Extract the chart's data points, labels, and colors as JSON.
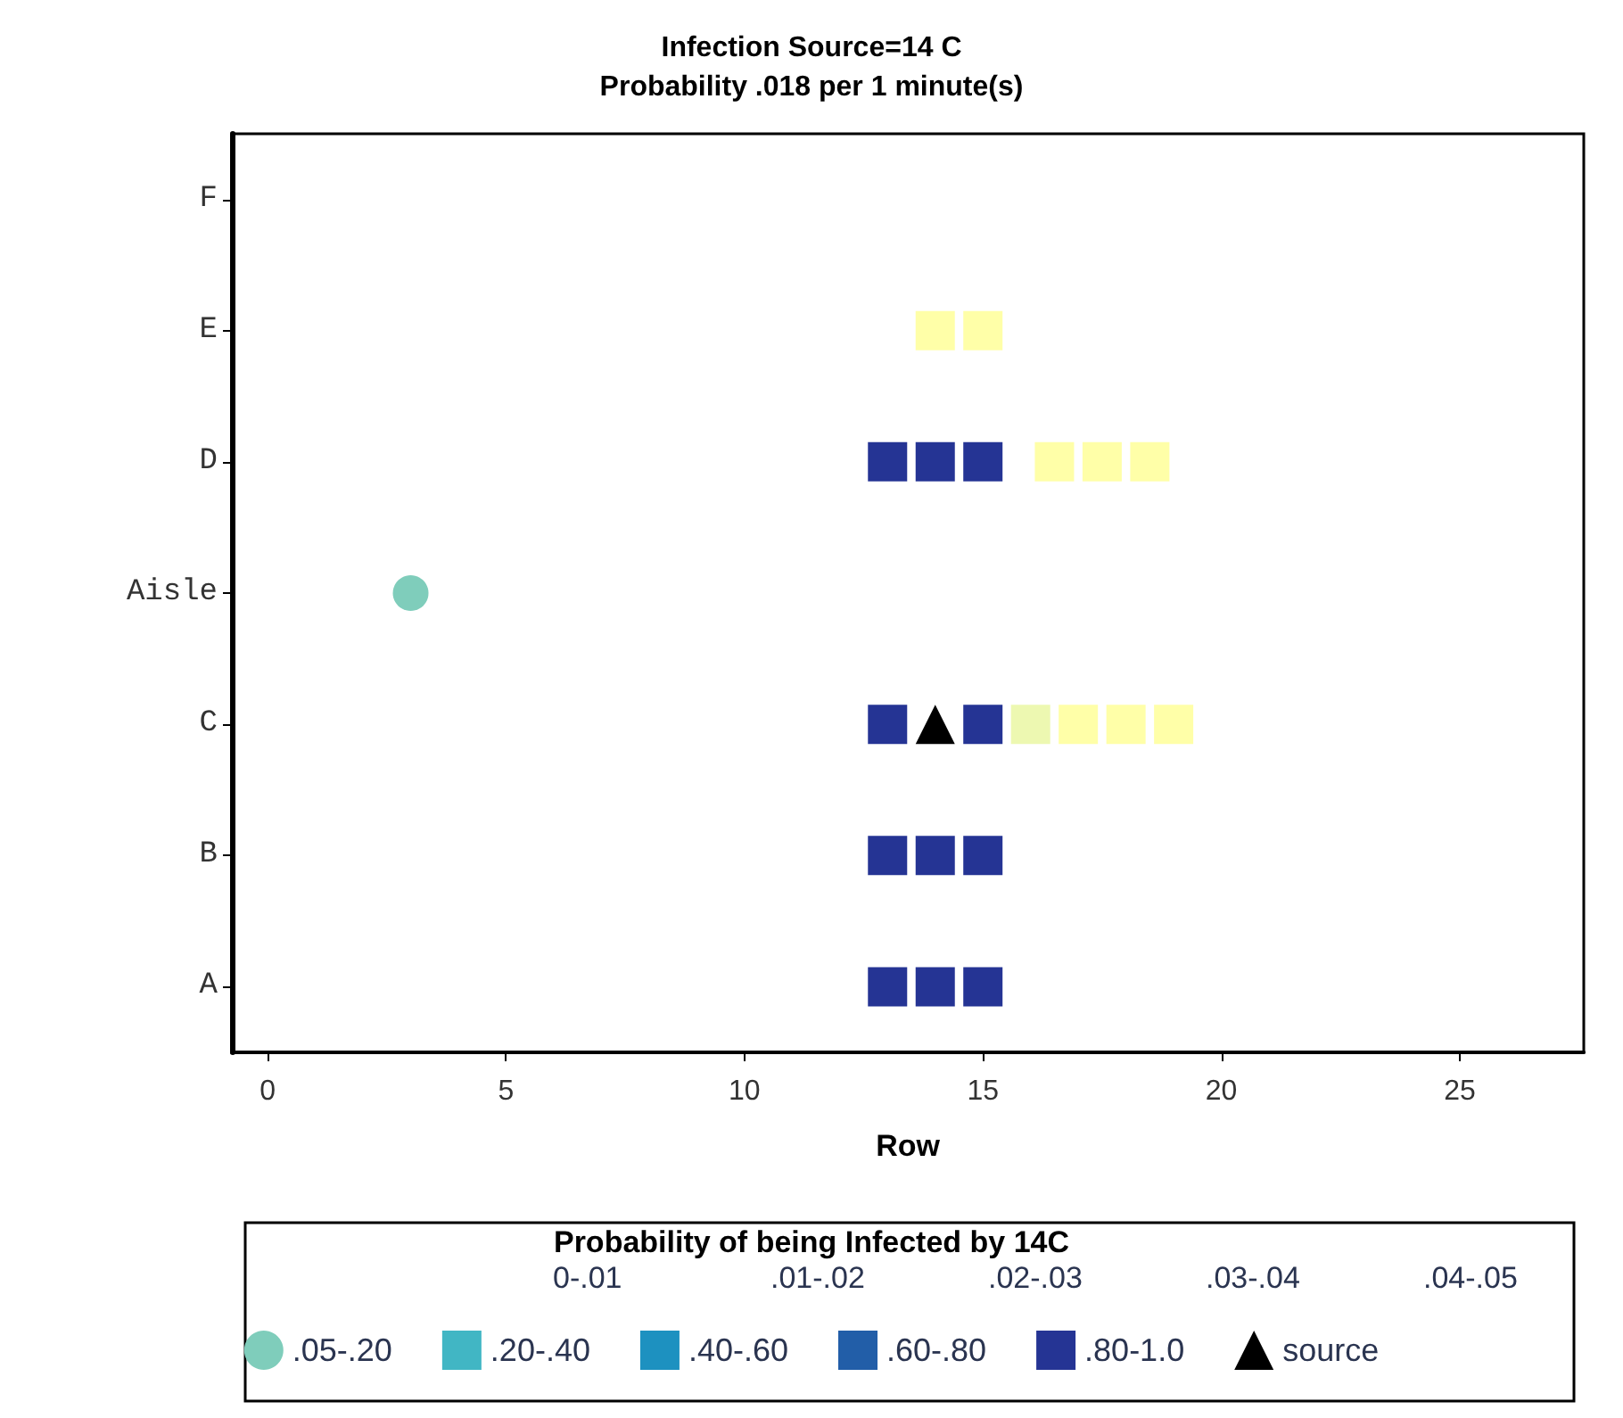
{
  "chart_data": {
    "type": "scatter",
    "orientation": "horizontal",
    "title": "Infection Source=14 C",
    "subtitle": "Probability .018 per 1 minute(s)",
    "xlabel": "Row",
    "legend_title": "Probability of being Infected by 14C",
    "legend": "bottom",
    "marker": "square",
    "grid": false,
    "xlim": [
      -0.75,
      27.6
    ],
    "xticks": [
      0,
      5,
      10,
      15,
      20,
      25
    ],
    "categories": [
      "F",
      "E",
      "D",
      "Aisle",
      "C",
      "B",
      "A"
    ],
    "annotations": [
      "0-.01",
      ".01-.02",
      ".02-.03",
      ".03-.04",
      ".04-.05"
    ],
    "series": [
      {
        "color": "#ffffa8",
        "values": [
          null,
          14,
          16.5,
          null,
          17,
          null,
          null
        ]
      },
      {
        "color": "#ffffa8",
        "values": [
          null,
          15,
          17.5,
          null,
          18,
          null,
          null
        ]
      },
      {
        "color": "#ffffa8",
        "values": [
          null,
          null,
          18.5,
          null,
          19,
          null,
          null
        ]
      },
      {
        "color": "#edf8b1",
        "values": [
          null,
          null,
          null,
          null,
          16,
          null,
          null
        ]
      },
      {
        "name": ".05-.20",
        "color": "#7fcdbb",
        "marker": "circle",
        "values": [
          null,
          null,
          null,
          3,
          null,
          null,
          null
        ]
      },
      {
        "name": ".20-.40",
        "color": "#41b6c4",
        "values": [
          null,
          null,
          null,
          null,
          null,
          null,
          null
        ]
      },
      {
        "name": ".40-.60",
        "color": "#1d91c0",
        "values": [
          null,
          null,
          null,
          null,
          null,
          null,
          null
        ]
      },
      {
        "name": ".60-.80",
        "color": "#225ea8",
        "values": [
          null,
          null,
          null,
          null,
          null,
          null,
          null
        ]
      },
      {
        "name": ".80-1.0",
        "color": "#253494",
        "values": [
          null,
          null,
          13,
          null,
          13,
          13,
          13
        ]
      },
      {
        "color": "#253494",
        "values": [
          null,
          null,
          14,
          null,
          null,
          14,
          14
        ]
      },
      {
        "color": "#253494",
        "values": [
          null,
          null,
          15,
          null,
          15,
          15,
          15
        ]
      },
      {
        "name": "source",
        "color": "#000000",
        "marker": "triangle",
        "values": [
          null,
          null,
          null,
          null,
          14,
          null,
          null
        ]
      }
    ]
  }
}
